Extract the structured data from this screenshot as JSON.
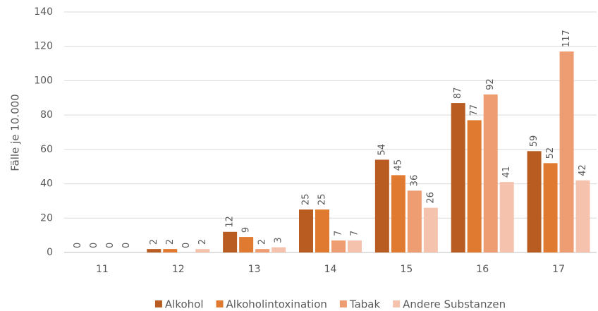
{
  "chart_data": {
    "type": "bar",
    "y_label": "Fälle je 10.000",
    "categories": [
      "11",
      "12",
      "13",
      "14",
      "15",
      "16",
      "17"
    ],
    "series": [
      {
        "name": "Alkohol",
        "color": "#b85c22",
        "values": [
          0,
          2,
          12,
          25,
          54,
          87,
          59
        ]
      },
      {
        "name": "Alkoholintoxination",
        "color": "#e07a30",
        "values": [
          0,
          2,
          9,
          25,
          45,
          77,
          52
        ]
      },
      {
        "name": "Tabak",
        "color": "#ee9d73",
        "values": [
          0,
          0,
          2,
          7,
          36,
          92,
          117
        ]
      },
      {
        "name": "Andere Substanzen",
        "color": "#f5c2ad",
        "values": [
          0,
          2,
          3,
          7,
          26,
          41,
          42
        ]
      }
    ],
    "ylim": [
      0,
      140
    ],
    "yticks": [
      0,
      20,
      40,
      60,
      80,
      100,
      120,
      140
    ],
    "grid": true,
    "legend": "bottom"
  }
}
